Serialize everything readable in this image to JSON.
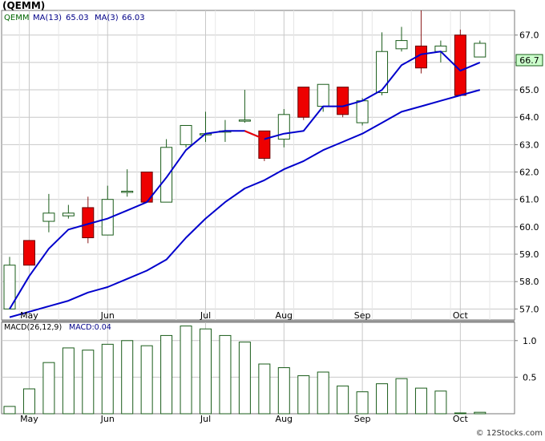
{
  "title": "(QEMM)",
  "watermark": "© 12Stocks.com",
  "price_legend": {
    "symbol": "QEMM",
    "ma13_label": "MA(13)",
    "ma13_value": "65.03",
    "ma3_label": "MA(3)",
    "ma3_value": "66.03"
  },
  "last_price_label": "66.7",
  "macd_legend": {
    "label": "MACD(26,12,9)",
    "value_label": "MACD:0.04"
  },
  "colors": {
    "up_candle_border": "#1a5c1a",
    "down_candle_fill": "#ee0000",
    "ma_line": "#0000cc",
    "ma_down_segment": "#ee0000",
    "grid": "#c8c8c8",
    "macd_bar": "#1a5c1a",
    "price_box_fill": "#ccffcc"
  },
  "chart_data": [
    {
      "type": "candlestick",
      "name": "price",
      "ylim": [
        56.6,
        67.9
      ],
      "y_ticks": [
        "57.0",
        "58.0",
        "59.0",
        "60.0",
        "61.0",
        "62.0",
        "63.0",
        "64.0",
        "65.0",
        "66.0",
        "67.0"
      ],
      "x_month_labels": [
        {
          "label": "May",
          "index": 1
        },
        {
          "label": "Jun",
          "index": 5
        },
        {
          "label": "Jul",
          "index": 10
        },
        {
          "label": "Aug",
          "index": 14
        },
        {
          "label": "Sep",
          "index": 18
        },
        {
          "label": "Oct",
          "index": 23
        }
      ],
      "grid": true,
      "candles": [
        {
          "o": 57.0,
          "h": 58.9,
          "l": 57.0,
          "c": 58.6
        },
        {
          "o": 59.5,
          "h": 59.5,
          "l": 58.6,
          "c": 58.6
        },
        {
          "o": 60.2,
          "h": 61.2,
          "l": 59.8,
          "c": 60.5
        },
        {
          "o": 60.4,
          "h": 60.8,
          "l": 60.3,
          "c": 60.5
        },
        {
          "o": 60.7,
          "h": 61.1,
          "l": 59.4,
          "c": 59.6
        },
        {
          "o": 59.7,
          "h": 61.5,
          "l": 59.7,
          "c": 61.0
        },
        {
          "o": 61.3,
          "h": 62.1,
          "l": 61.1,
          "c": 61.3
        },
        {
          "o": 62.0,
          "h": 62.0,
          "l": 60.9,
          "c": 60.9
        },
        {
          "o": 60.9,
          "h": 63.2,
          "l": 60.9,
          "c": 62.9
        },
        {
          "o": 63.0,
          "h": 63.7,
          "l": 62.9,
          "c": 63.7
        },
        {
          "o": 63.4,
          "h": 64.2,
          "l": 63.1,
          "c": 63.4
        },
        {
          "o": 63.5,
          "h": 63.9,
          "l": 63.1,
          "c": 63.5
        },
        {
          "o": 63.9,
          "h": 65.0,
          "l": 63.8,
          "c": 63.9
        },
        {
          "o": 63.5,
          "h": 63.5,
          "l": 62.4,
          "c": 62.5
        },
        {
          "o": 63.2,
          "h": 64.3,
          "l": 62.9,
          "c": 64.1
        },
        {
          "o": 65.1,
          "h": 65.1,
          "l": 63.9,
          "c": 64.0
        },
        {
          "o": 64.4,
          "h": 65.2,
          "l": 64.2,
          "c": 65.2
        },
        {
          "o": 65.1,
          "h": 65.1,
          "l": 64.0,
          "c": 64.1
        },
        {
          "o": 63.8,
          "h": 64.7,
          "l": 63.7,
          "c": 64.6
        },
        {
          "o": 64.9,
          "h": 67.1,
          "l": 64.8,
          "c": 66.4
        },
        {
          "o": 66.5,
          "h": 67.3,
          "l": 66.4,
          "c": 66.8
        },
        {
          "o": 66.6,
          "h": 67.9,
          "l": 65.6,
          "c": 65.8
        },
        {
          "o": 66.4,
          "h": 66.8,
          "l": 66.0,
          "c": 66.6
        },
        {
          "o": 67.0,
          "h": 67.2,
          "l": 64.8,
          "c": 64.8
        },
        {
          "o": 66.2,
          "h": 66.8,
          "l": 66.2,
          "c": 66.7
        }
      ],
      "ma3": [
        57.0,
        58.2,
        59.2,
        59.9,
        60.1,
        60.3,
        60.6,
        60.9,
        61.8,
        62.8,
        63.4,
        63.5,
        63.5,
        63.2,
        63.4,
        63.5,
        64.4,
        64.4,
        64.6,
        65.0,
        65.9,
        66.3,
        66.4,
        65.7,
        66.0
      ],
      "ma13": [
        56.7,
        56.9,
        57.1,
        57.3,
        57.6,
        57.8,
        58.1,
        58.4,
        58.8,
        59.6,
        60.3,
        60.9,
        61.4,
        61.7,
        62.1,
        62.4,
        62.8,
        63.1,
        63.4,
        63.8,
        64.2,
        64.4,
        64.6,
        64.8,
        65.0
      ],
      "ma3_down_segments": [
        [
          12,
          13
        ]
      ]
    },
    {
      "type": "bar",
      "name": "MACD(26,12,9)",
      "ylim": [
        0,
        1.25
      ],
      "y_ticks": [
        "0.5",
        "1.0"
      ],
      "x_month_labels": [
        {
          "label": "May",
          "index": 1
        },
        {
          "label": "Jun",
          "index": 5
        },
        {
          "label": "Jul",
          "index": 10
        },
        {
          "label": "Aug",
          "index": 14
        },
        {
          "label": "Sep",
          "index": 18
        },
        {
          "label": "Oct",
          "index": 23
        }
      ],
      "grid": true,
      "values": [
        0.1,
        0.34,
        0.7,
        0.9,
        0.87,
        0.95,
        1.0,
        0.93,
        1.07,
        1.2,
        1.16,
        1.07,
        0.98,
        0.68,
        0.63,
        0.52,
        0.57,
        0.38,
        0.3,
        0.41,
        0.48,
        0.35,
        0.31,
        0.0,
        0.02
      ]
    }
  ]
}
